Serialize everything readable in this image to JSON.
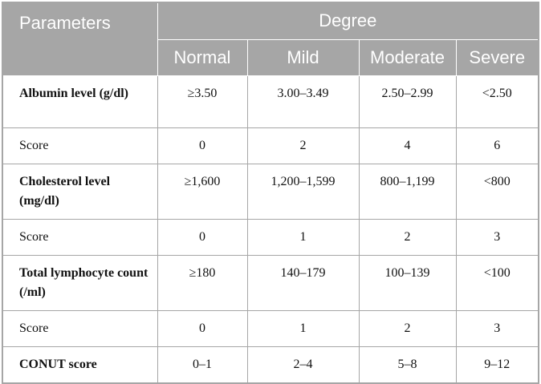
{
  "header": {
    "title": "Parameters",
    "group": "Degree",
    "columns": [
      "Normal",
      "Mild",
      "Moderate",
      "Severe"
    ]
  },
  "table": {
    "rows": [
      [
        "Albumin level (g/dl)",
        "≥3.50",
        "3.00–3.49",
        "2.50–2.99",
        "<2.50"
      ],
      [
        "Score",
        "0",
        "2",
        "4",
        "6"
      ],
      [
        "Cholesterol level (mg/dl)",
        "≥1,600",
        "1,200–1,599",
        "800–1,199",
        "<800"
      ],
      [
        "Score",
        "0",
        "1",
        "2",
        "3"
      ],
      [
        "Total lymphocyte count (/ml)",
        "≥180",
        "140–179",
        "100–139",
        "<100"
      ],
      [
        "Score",
        "0",
        "1",
        "2",
        "3"
      ],
      [
        "CONUT score",
        "0–1",
        "2–4",
        "5–8",
        "9–12"
      ]
    ]
  }
}
